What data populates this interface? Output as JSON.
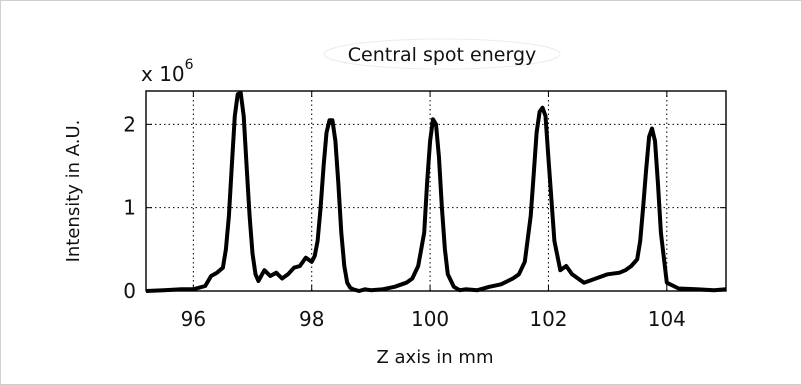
{
  "chart_data": {
    "type": "line",
    "title": "Central spot energy",
    "xlabel": "Z axis in mm",
    "ylabel": "Intensity in A.U.",
    "y_exponent_label": "x 10",
    "y_exponent_power": "6",
    "xlim": [
      95.2,
      105.0
    ],
    "ylim": [
      0,
      2.4
    ],
    "xticks": [
      96,
      98,
      100,
      102,
      104
    ],
    "yticks": [
      0,
      1,
      2
    ],
    "xtick_labels": [
      "96",
      "98",
      "100",
      "102",
      "104"
    ],
    "ytick_labels": [
      "0",
      "1",
      "2"
    ],
    "grid": true,
    "line_color": "#000000",
    "series": [
      {
        "x": [
          95.2,
          95.5,
          95.8,
          96.0,
          96.2,
          96.3,
          96.4,
          96.5,
          96.55,
          96.6,
          96.65,
          96.7,
          96.75,
          96.8,
          96.85,
          96.9,
          96.95,
          97.0,
          97.05,
          97.1,
          97.2,
          97.3,
          97.4,
          97.5,
          97.6,
          97.7,
          97.8,
          97.9,
          98.0,
          98.05,
          98.1,
          98.15,
          98.2,
          98.25,
          98.3,
          98.35,
          98.4,
          98.45,
          98.5,
          98.55,
          98.6,
          98.65,
          98.7,
          98.8,
          98.9,
          99.0,
          99.2,
          99.4,
          99.6,
          99.7,
          99.8,
          99.9,
          99.95,
          100.0,
          100.05,
          100.1,
          100.15,
          100.2,
          100.25,
          100.3,
          100.4,
          100.5,
          100.6,
          100.8,
          101.0,
          101.2,
          101.4,
          101.5,
          101.6,
          101.7,
          101.75,
          101.8,
          101.85,
          101.9,
          101.95,
          102.0,
          102.05,
          102.1,
          102.2,
          102.3,
          102.4,
          102.5,
          102.6,
          102.8,
          103.0,
          103.2,
          103.3,
          103.4,
          103.5,
          103.55,
          103.6,
          103.65,
          103.7,
          103.75,
          103.8,
          103.85,
          103.9,
          104.0,
          104.2,
          104.5,
          104.8,
          105.0
        ],
        "y": [
          0.0,
          0.01,
          0.02,
          0.02,
          0.06,
          0.18,
          0.22,
          0.28,
          0.5,
          0.9,
          1.5,
          2.1,
          2.36,
          2.38,
          2.1,
          1.5,
          0.9,
          0.45,
          0.2,
          0.12,
          0.25,
          0.18,
          0.22,
          0.15,
          0.2,
          0.28,
          0.3,
          0.4,
          0.35,
          0.42,
          0.6,
          1.0,
          1.5,
          1.9,
          2.05,
          2.05,
          1.8,
          1.3,
          0.7,
          0.3,
          0.1,
          0.04,
          0.02,
          0.0,
          0.02,
          0.01,
          0.02,
          0.05,
          0.1,
          0.15,
          0.3,
          0.7,
          1.3,
          1.8,
          2.06,
          2.0,
          1.6,
          1.0,
          0.5,
          0.2,
          0.05,
          0.01,
          0.02,
          0.01,
          0.05,
          0.08,
          0.15,
          0.2,
          0.35,
          0.9,
          1.4,
          1.9,
          2.15,
          2.2,
          2.1,
          1.6,
          1.1,
          0.6,
          0.25,
          0.3,
          0.2,
          0.15,
          0.1,
          0.15,
          0.2,
          0.22,
          0.25,
          0.3,
          0.38,
          0.6,
          1.0,
          1.45,
          1.85,
          1.95,
          1.8,
          1.3,
          0.7,
          0.1,
          0.03,
          0.02,
          0.01,
          0.02
        ]
      }
    ]
  }
}
